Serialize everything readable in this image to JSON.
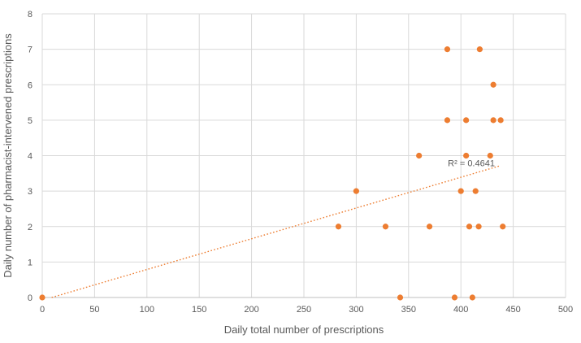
{
  "chart_data": {
    "type": "scatter",
    "title": "",
    "xlabel": "Daily total number of prescriptions",
    "ylabel": "Daily number of pharmacist-intervened prescriptions",
    "xlim": [
      0,
      500
    ],
    "ylim": [
      0,
      8
    ],
    "x_ticks": [
      0,
      50,
      100,
      150,
      200,
      250,
      300,
      350,
      400,
      450,
      500
    ],
    "y_ticks": [
      0,
      1,
      2,
      3,
      4,
      5,
      6,
      7,
      8
    ],
    "grid": true,
    "legend_position": "none",
    "marker_color": "#ED7D31",
    "gridline_color": "#D9D9D9",
    "axis_line_color": "#BFBFBF",
    "text_color": "#595959",
    "points": [
      [
        0,
        0
      ],
      [
        283,
        2
      ],
      [
        300,
        3
      ],
      [
        328,
        2
      ],
      [
        342,
        0
      ],
      [
        360,
        4
      ],
      [
        370,
        2
      ],
      [
        387,
        5
      ],
      [
        387,
        7
      ],
      [
        394,
        0
      ],
      [
        400,
        3
      ],
      [
        405,
        4
      ],
      [
        405,
        5
      ],
      [
        408,
        2
      ],
      [
        411,
        0
      ],
      [
        414,
        3
      ],
      [
        417,
        2
      ],
      [
        418,
        7
      ],
      [
        428,
        4
      ],
      [
        431,
        5
      ],
      [
        431,
        6
      ],
      [
        438,
        5
      ],
      [
        440,
        2
      ]
    ],
    "trendline": {
      "type": "linear",
      "style": "dotted",
      "color": "#ED7D31",
      "start": {
        "x": 9,
        "y": 0
      },
      "end": {
        "x": 438,
        "y": 3.72
      },
      "r_squared_label": "R² = 0.4641",
      "label_anchor": {
        "x": 410,
        "y": 3.79
      }
    }
  }
}
